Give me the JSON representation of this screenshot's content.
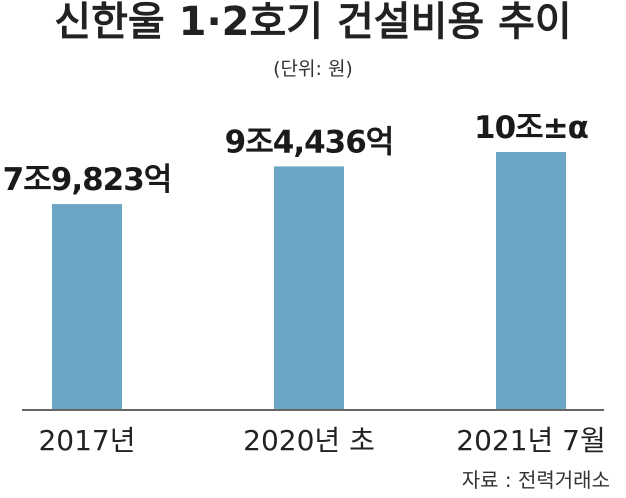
{
  "chart_data": {
    "type": "bar",
    "title": "신한울 1·2호기 건설비용 추이",
    "unit": "(단위: 원)",
    "categories": [
      "2017년",
      "2020년 초",
      "2021년 7월"
    ],
    "values": [
      79823,
      94436,
      100000
    ],
    "value_labels": [
      "7조9,823억",
      "9조4,436억",
      "10조±α"
    ],
    "ylim": [
      0,
      100000
    ],
    "bar_color": "#6aa6c4",
    "grid": false,
    "source": "자료 : 전력거래소"
  }
}
